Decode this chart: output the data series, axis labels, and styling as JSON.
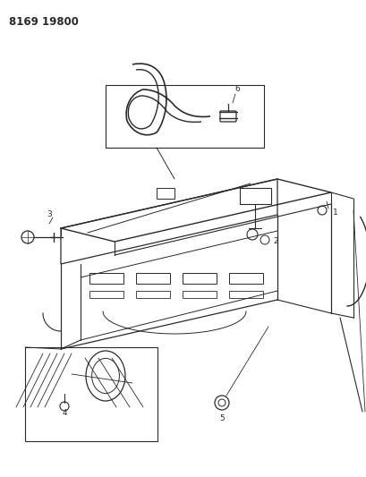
{
  "title": "8169 19800",
  "bg_color": "#ffffff",
  "line_color": "#2a2a2a",
  "title_fontsize": 8.5,
  "fig_width": 4.1,
  "fig_height": 5.33,
  "dpi": 100
}
